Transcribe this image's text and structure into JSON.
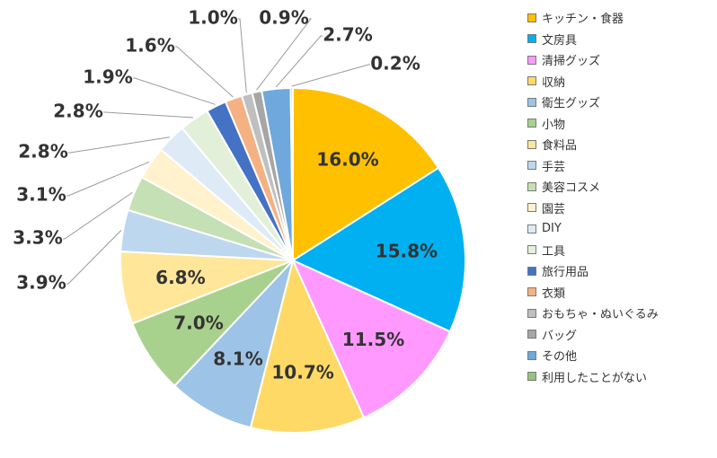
{
  "chart_data": {
    "type": "pie",
    "title": "",
    "legend_position": "right",
    "slices": [
      {
        "label": "キッチン・食器",
        "value": 16.0,
        "display": "16.0%",
        "color": "#FFC000"
      },
      {
        "label": "文房具",
        "value": 15.8,
        "display": "15.8%",
        "color": "#00B0F0"
      },
      {
        "label": "清掃グッズ",
        "value": 11.5,
        "display": "11.5%",
        "color": "#FF99FF"
      },
      {
        "label": "収納",
        "value": 10.7,
        "display": "10.7%",
        "color": "#FFD966"
      },
      {
        "label": "衛生グッズ",
        "value": 8.1,
        "display": "8.1%",
        "color": "#9DC3E6"
      },
      {
        "label": "小物",
        "value": 7.0,
        "display": "7.0%",
        "color": "#A9D18E"
      },
      {
        "label": "食料品",
        "value": 6.8,
        "display": "6.8%",
        "color": "#FFE699"
      },
      {
        "label": "手芸",
        "value": 3.9,
        "display": "3.9%",
        "color": "#BDD7EE"
      },
      {
        "label": "美容コスメ",
        "value": 3.3,
        "display": "3.3%",
        "color": "#C5E0B4"
      },
      {
        "label": "園芸",
        "value": 3.1,
        "display": "3.1%",
        "color": "#FFF2CC"
      },
      {
        "label": "DIY",
        "value": 2.8,
        "display": "2.8%",
        "color": "#DEEBF7"
      },
      {
        "label": "工具",
        "value": 2.8,
        "display": "2.8%",
        "color": "#E2F0D9"
      },
      {
        "label": "旅行用品",
        "value": 1.9,
        "display": "1.9%",
        "color": "#4472C4"
      },
      {
        "label": "衣類",
        "value": 1.6,
        "display": "1.6%",
        "color": "#F4B183"
      },
      {
        "label": "おもちゃ・ぬいぐるみ",
        "value": 1.0,
        "display": "1.0%",
        "color": "#BFBFBF"
      },
      {
        "label": "バッグ",
        "value": 0.9,
        "display": "0.9%",
        "color": "#A6A6A6"
      },
      {
        "label": "その他",
        "value": 2.7,
        "display": "2.7%",
        "color": "#6FA8DC"
      },
      {
        "label": "利用したことがない",
        "value": 0.2,
        "display": "0.2%",
        "color": "#93C47D"
      }
    ]
  }
}
